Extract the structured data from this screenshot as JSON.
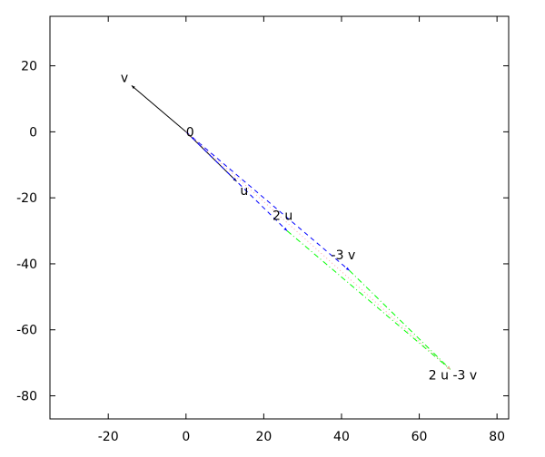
{
  "chart_data": {
    "type": "vector",
    "title": "",
    "xlabel": "",
    "ylabel": "",
    "xlim": [
      -35,
      83
    ],
    "ylim": [
      -87,
      35
    ],
    "grid": false,
    "x_ticks": [
      "-20",
      "0",
      "20",
      "40",
      "60",
      "80"
    ],
    "x_tick_values": [
      -20,
      0,
      20,
      40,
      60,
      80
    ],
    "y_ticks": [
      "20",
      "0",
      "-20",
      "-40",
      "-60",
      "-80"
    ],
    "y_tick_values": [
      20,
      0,
      -20,
      -40,
      -60,
      -80
    ],
    "points": [
      {
        "label": "0",
        "x": 0,
        "y": 0
      },
      {
        "label": "v",
        "x": -14,
        "y": 14
      },
      {
        "label": "u",
        "x": 13,
        "y": -15
      },
      {
        "label": "2 u",
        "x": 26,
        "y": -30
      },
      {
        "label": "-3 v",
        "x": 42,
        "y": -42
      },
      {
        "label": "2 u -3 v",
        "x": 68,
        "y": -72
      }
    ],
    "vectors": [
      {
        "from": [
          0,
          0
        ],
        "to": [
          -14,
          14
        ],
        "color": "#000000",
        "style": "solid"
      },
      {
        "from": [
          0,
          0
        ],
        "to": [
          13,
          -15
        ],
        "color": "#000000",
        "style": "solid"
      },
      {
        "from": [
          0,
          0
        ],
        "to": [
          26,
          -30
        ],
        "color": "#0000ff",
        "style": "dashed"
      },
      {
        "from": [
          0,
          0
        ],
        "to": [
          42,
          -42
        ],
        "color": "#0000ff",
        "style": "dashed"
      },
      {
        "from": [
          26,
          -30
        ],
        "to": [
          68,
          -72
        ],
        "color": "#00ff00",
        "style": "dashdot"
      },
      {
        "from": [
          42,
          -42
        ],
        "to": [
          68,
          -72
        ],
        "color": "#00ff00",
        "style": "dashdot"
      },
      {
        "from": [
          0,
          0
        ],
        "to": [
          68,
          -72
        ],
        "color": "#ffa0a0",
        "style": "dotted"
      }
    ]
  }
}
